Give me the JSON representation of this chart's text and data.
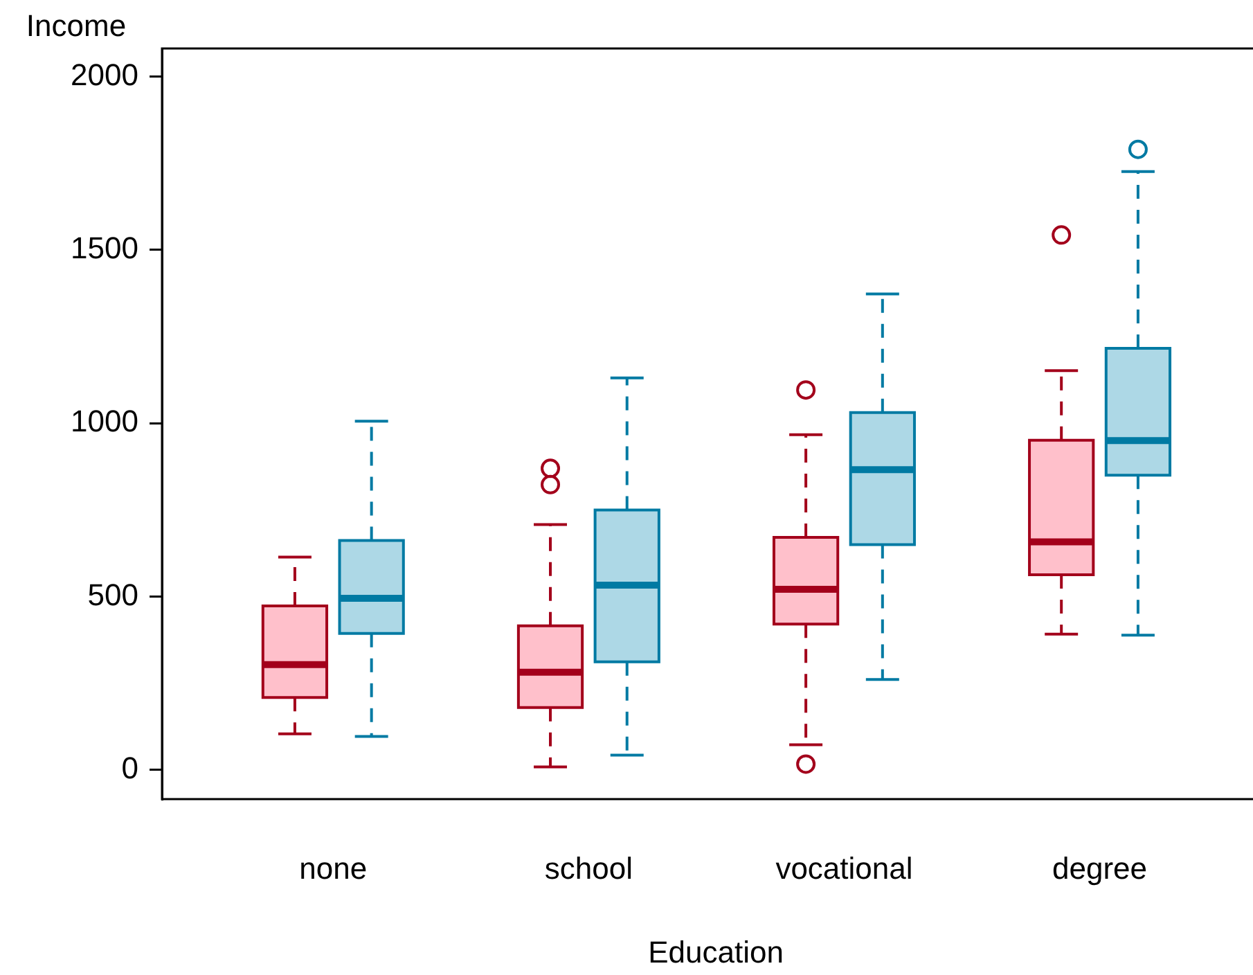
{
  "chart_data": {
    "type": "box",
    "xlabel": "Education",
    "ylabel": "Income",
    "categories": [
      "none",
      "school",
      "vocational",
      "degree"
    ],
    "ylim": [
      -84,
      2081
    ],
    "yticks": [
      0,
      500,
      1000,
      1500,
      2000
    ],
    "series": [
      {
        "color": "#ffc0cb",
        "boxes": [
          {
            "low": 104,
            "q1": 209,
            "median": 304,
            "q3": 473,
            "high": 614
          },
          {
            "low": 9,
            "q1": 180,
            "median": 282,
            "q3": 416,
            "high": 708,
            "outliers": [
              823,
              870
            ]
          },
          {
            "low": 73,
            "q1": 421,
            "median": 521,
            "q3": 671,
            "high": 967,
            "outliers": [
              17,
              1096
            ]
          },
          {
            "low": 392,
            "q1": 563,
            "median": 658,
            "q3": 951,
            "high": 1152,
            "outliers": [
              1543
            ]
          }
        ]
      },
      {
        "color": "#add8e6",
        "boxes": [
          {
            "low": 97,
            "q1": 394,
            "median": 495,
            "q3": 662,
            "high": 1006
          },
          {
            "low": 43,
            "q1": 312,
            "median": 533,
            "q3": 750,
            "high": 1131
          },
          {
            "low": 261,
            "q1": 650,
            "median": 866,
            "q3": 1031,
            "high": 1373
          },
          {
            "low": 389,
            "q1": 850,
            "median": 950,
            "q3": 1216,
            "high": 1726,
            "outliers": [
              1790
            ]
          }
        ]
      }
    ]
  }
}
